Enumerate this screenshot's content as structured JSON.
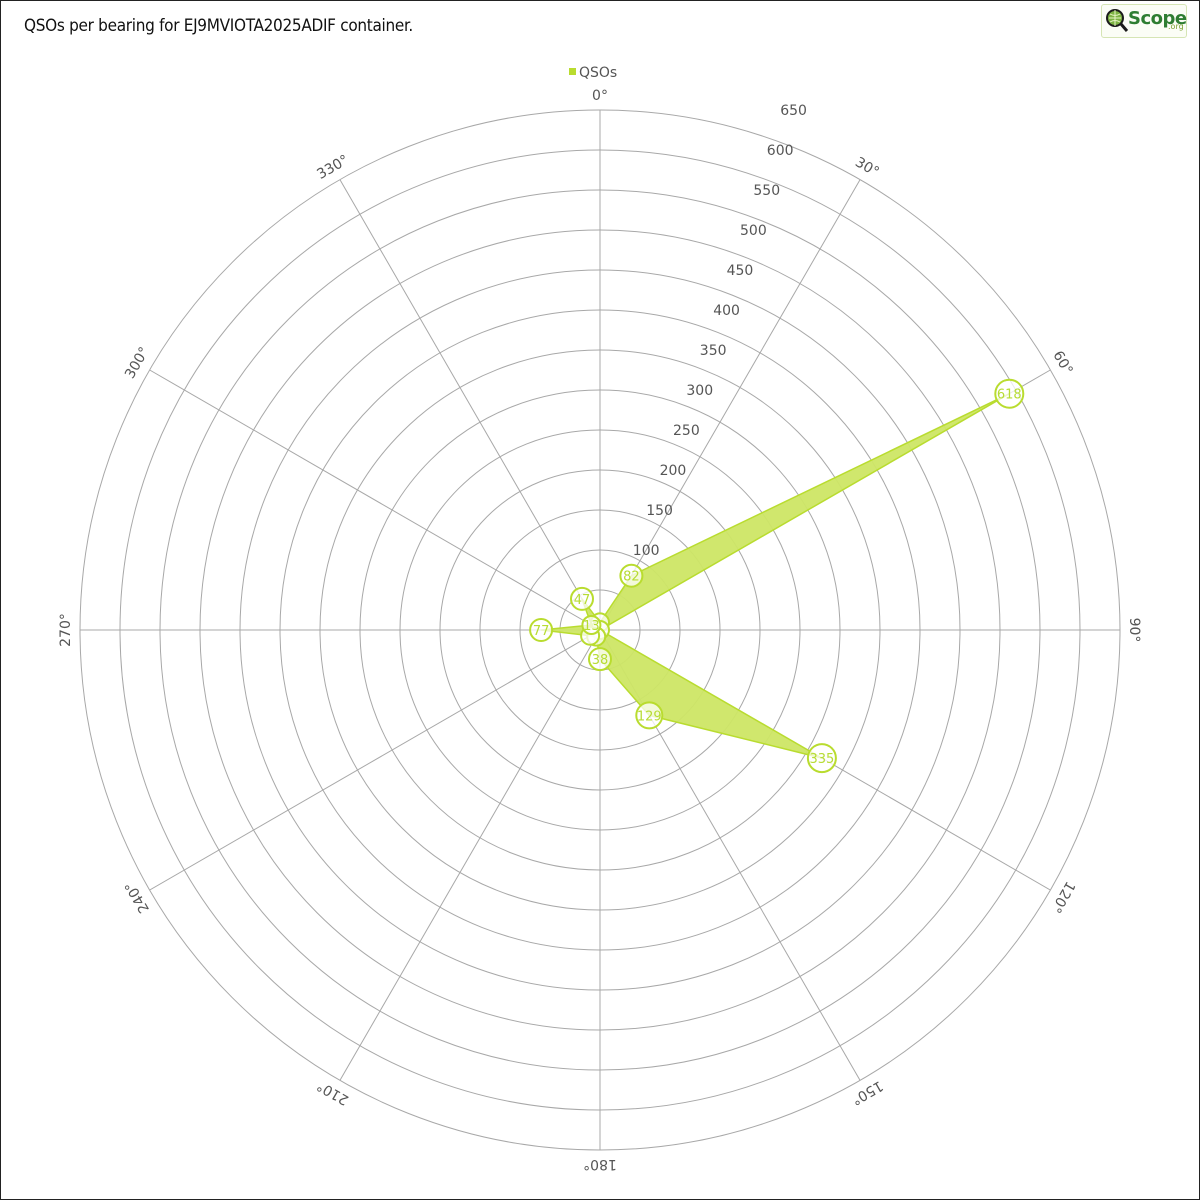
{
  "title": "QSOs per bearing for EJ9MVIOTA2025ADIF container.",
  "logo": {
    "text": "Scope",
    "suffix": ".org",
    "icon": "magnifier-globe-icon"
  },
  "colors": {
    "series_fill": "#cde665",
    "series_stroke": "#b9dc2f",
    "grid": "#a8a8a8",
    "label": "#555555"
  },
  "chart_data": {
    "type": "radar",
    "legend": {
      "label": "QSOs",
      "placement": "top-center"
    },
    "angle_labels": [
      "0°",
      "30°",
      "60°",
      "90°",
      "120°",
      "150°",
      "180°",
      "210°",
      "240°",
      "270°",
      "300°",
      "330°"
    ],
    "radial_ticks": [
      "100",
      "150",
      "200",
      "250",
      "300",
      "350",
      "400",
      "450",
      "500",
      "550",
      "600",
      "650"
    ],
    "rlim": [
      0,
      680
    ],
    "series": [
      {
        "name": "QSOs",
        "points": [
          {
            "bearing": 0,
            "value": 10,
            "label": ""
          },
          {
            "bearing": 30,
            "value": 82,
            "label": "82"
          },
          {
            "bearing": 60,
            "value": 618,
            "label": "618"
          },
          {
            "bearing": 90,
            "value": 0,
            "label": ""
          },
          {
            "bearing": 120,
            "value": 335,
            "label": "335"
          },
          {
            "bearing": 150,
            "value": 129,
            "label": "129"
          },
          {
            "bearing": 180,
            "value": 38,
            "label": "38"
          },
          {
            "bearing": 210,
            "value": 10,
            "label": ""
          },
          {
            "bearing": 240,
            "value": 15,
            "label": ""
          },
          {
            "bearing": 270,
            "value": 77,
            "label": "77"
          },
          {
            "bearing": 300,
            "value": 13,
            "label": "13"
          },
          {
            "bearing": 330,
            "value": 47,
            "label": "47"
          }
        ]
      }
    ]
  }
}
